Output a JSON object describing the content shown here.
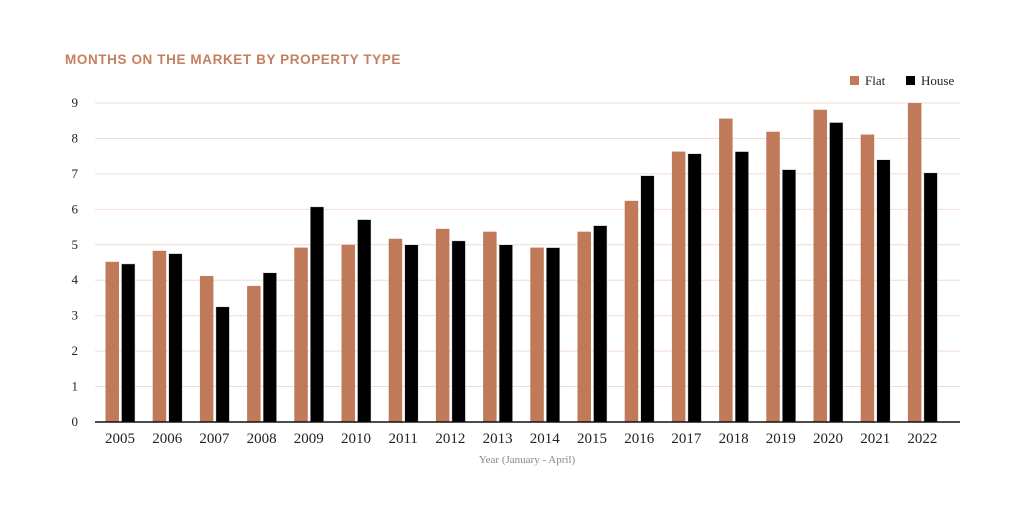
{
  "chart_data": {
    "type": "bar",
    "title": "MONTHS ON THE MARKET BY PROPERTY TYPE",
    "xlabel": "Year (January - April)",
    "ylabel": "",
    "ylim": [
      0,
      9
    ],
    "yticks": [
      "0",
      "1",
      "2",
      "3",
      "4",
      "5",
      "6",
      "7",
      "8",
      "9"
    ],
    "grid": true,
    "legend_position": "top-right",
    "categories": [
      "2005",
      "2006",
      "2007",
      "2008",
      "2009",
      "2010",
      "2011",
      "2012",
      "2013",
      "2014",
      "2015",
      "2016",
      "2017",
      "2018",
      "2019",
      "2020",
      "2021",
      "2022"
    ],
    "series": [
      {
        "name": "Flat",
        "color": "#c07a5a",
        "values": [
          4.52,
          4.83,
          4.12,
          3.84,
          4.92,
          5.0,
          5.17,
          5.45,
          5.37,
          4.92,
          5.37,
          6.24,
          7.63,
          8.56,
          8.19,
          8.81,
          8.11,
          9.0
        ]
      },
      {
        "name": "House",
        "color": "#000000",
        "values": [
          4.46,
          4.75,
          3.25,
          4.21,
          6.07,
          5.71,
          5.0,
          5.11,
          5.0,
          4.92,
          5.54,
          6.95,
          7.57,
          7.63,
          7.12,
          8.45,
          7.4,
          7.03
        ]
      }
    ]
  }
}
